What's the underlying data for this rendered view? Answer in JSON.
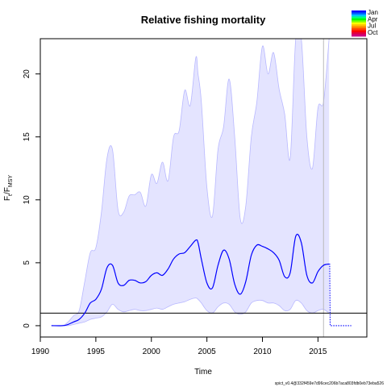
{
  "chart_data": {
    "type": "line",
    "title": "Relative fishing mortality",
    "xlabel": "Time",
    "ylabel_main": "F",
    "ylabel_sub1": "t",
    "ylabel_mid": "/F",
    "ylabel_sub2": "MSY",
    "xlim": [
      1990,
      2019.4
    ],
    "ylim": [
      -0.9,
      22.8
    ],
    "x_ticks": [
      1990,
      1995,
      2000,
      2005,
      2010,
      2015
    ],
    "y_ticks": [
      0,
      5,
      10,
      15,
      20
    ],
    "reference_line_y": 1,
    "vertical_line_x": 2015.5,
    "grid": false,
    "legend_position": "top-right",
    "legend": [
      {
        "label": "Jan",
        "color": "#0000ff"
      },
      {
        "label": "Apr",
        "color": "#00ff00"
      },
      {
        "label": "Jul",
        "color": "#ff8000"
      },
      {
        "label": "Oct",
        "color": "#cc0080"
      }
    ],
    "series": [
      {
        "name": "",
        "role": "estimate",
        "color": "#0000ff",
        "x": [
          1991,
          1992,
          1992.5,
          1993,
          1993.5,
          1994,
          1994.5,
          1995,
          1995.5,
          1996,
          1996.5,
          1997,
          1997.5,
          1998,
          1998.5,
          1999,
          1999.5,
          2000,
          2000.5,
          2001,
          2001.5,
          2002,
          2002.5,
          2003,
          2003.5,
          2004,
          2004.2,
          2004.5,
          2005,
          2005.5,
          2006,
          2006.5,
          2007,
          2007.5,
          2008,
          2008.5,
          2009,
          2009.5,
          2010,
          2010.5,
          2011,
          2011.5,
          2012,
          2012.5,
          2013,
          2013.5,
          2014,
          2014.5,
          2015,
          2015.5,
          2016
        ],
        "y": [
          0,
          0,
          0.1,
          0.3,
          0.5,
          1,
          1.8,
          2.1,
          2.9,
          4.6,
          4.8,
          3.4,
          3.2,
          3.6,
          3.6,
          3.4,
          3.5,
          4.0,
          4.2,
          4.0,
          4.5,
          5.3,
          5.7,
          5.8,
          6.3,
          6.8,
          6.6,
          5.3,
          3.4,
          3.0,
          4.8,
          6.0,
          5.3,
          3.3,
          2.5,
          3.5,
          5.6,
          6.4,
          6.3,
          6.1,
          5.8,
          5.2,
          3.9,
          4.2,
          7.1,
          6.6,
          4.0,
          3.4,
          4.3,
          4.8,
          4.9
        ]
      },
      {
        "name": "",
        "role": "upper_ci",
        "color": "#b8b8ff",
        "x": [
          1991,
          1992,
          1992.5,
          1993,
          1993.5,
          1994,
          1994.5,
          1995,
          1995.5,
          1996,
          1996.5,
          1997,
          1997.5,
          1998,
          1998.5,
          1999,
          1999.5,
          2000,
          2000.5,
          2001,
          2001.5,
          2002,
          2002.5,
          2003,
          2003.5,
          2004,
          2004.2,
          2004.5,
          2005,
          2005.5,
          2006,
          2006.5,
          2007,
          2007.5,
          2008,
          2008.5,
          2009,
          2009.5,
          2010,
          2010.5,
          2011,
          2011.5,
          2012,
          2012.5,
          2013,
          2013.5,
          2014,
          2014.5,
          2015,
          2015.5,
          2016
        ],
        "y": [
          0,
          0,
          0.3,
          0.8,
          1.2,
          3.5,
          5.8,
          6.2,
          9.0,
          13.3,
          14.0,
          9.2,
          9.0,
          10.3,
          10.4,
          10.6,
          9.5,
          12.0,
          11.3,
          13.0,
          11.5,
          15.0,
          15.5,
          18.7,
          17.5,
          21.3,
          20.0,
          17.8,
          11.0,
          8.7,
          14.0,
          15.8,
          19.6,
          15.0,
          8.5,
          9.5,
          15.0,
          17.8,
          22.2,
          20.0,
          21.7,
          18.8,
          16.8,
          13.3,
          22.8,
          22.8,
          15.0,
          12.5,
          17.3,
          17.8,
          22.8
        ]
      },
      {
        "name": "",
        "role": "lower_ci",
        "color": "#b8b8ff",
        "x": [
          1991,
          1992,
          1992.5,
          1993,
          1993.5,
          1994,
          1994.5,
          1995,
          1995.5,
          1996,
          1996.5,
          1997,
          1997.5,
          1998,
          1998.5,
          1999,
          1999.5,
          2000,
          2000.5,
          2001,
          2001.5,
          2002,
          2002.5,
          2003,
          2003.5,
          2004,
          2004.2,
          2004.5,
          2005,
          2005.5,
          2006,
          2006.5,
          2007,
          2007.5,
          2008,
          2008.5,
          2009,
          2009.5,
          2010,
          2010.5,
          2011,
          2011.5,
          2012,
          2012.5,
          2013,
          2013.5,
          2014,
          2014.5,
          2015,
          2015.5,
          2016
        ],
        "y": [
          0,
          0,
          0,
          0.1,
          0.2,
          0.3,
          0.5,
          0.6,
          0.7,
          1.1,
          1.7,
          1.3,
          1.1,
          1.2,
          1.3,
          1.2,
          1.2,
          1.3,
          1.4,
          1.3,
          1.5,
          1.7,
          1.8,
          1.9,
          2.1,
          2.2,
          2.1,
          1.8,
          1.2,
          1.0,
          1.5,
          1.8,
          1.7,
          1.1,
          0.9,
          1.1,
          1.8,
          2.0,
          2.0,
          1.8,
          1.8,
          1.6,
          1.2,
          1.3,
          2.0,
          1.8,
          1.2,
          1.0,
          1.2,
          1.3,
          1.0
        ]
      },
      {
        "name": "",
        "role": "prediction",
        "color": "#0000ff",
        "x": [
          2016,
          2016.05,
          2016.1,
          2016.5,
          2017,
          2018
        ],
        "y": [
          4.9,
          4.9,
          0,
          0,
          0,
          0
        ]
      }
    ]
  },
  "footer": {
    "text": "spict_v0.4@332f459e7d96cec206b7aca803fdb0eb73eba526"
  },
  "colors": {
    "ci_fill": "#e4e4ff",
    "ci_line": "#b8b8ff",
    "estimate": "#0000ff",
    "reference": "#000000",
    "vline": "#bbbbbb"
  }
}
